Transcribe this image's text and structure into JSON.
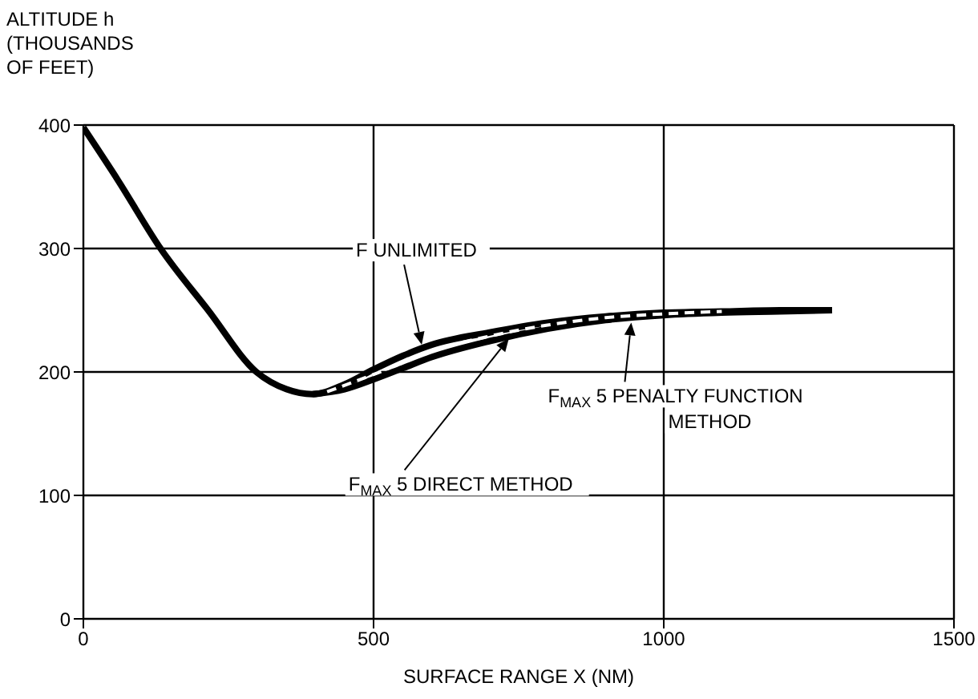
{
  "chart_data": {
    "type": "line",
    "ylabel": "ALTITUDE h\n(THOUSANDS\nOF FEET)",
    "xlabel": "SURFACE RANGE X (NM)",
    "xlim": [
      0,
      1500
    ],
    "xticks": [
      0,
      500,
      1000,
      1500
    ],
    "ylim": [
      0,
      400
    ],
    "yticks": [
      0,
      100,
      200,
      300,
      400
    ],
    "grid": true,
    "marker": "none",
    "series": [
      {
        "color": "#000000",
        "line_style": "solid",
        "x": [
          0,
          60,
          133,
          215,
          298,
          350,
          395,
          450,
          500,
          550,
          600,
          700,
          800,
          900,
          1000,
          1100,
          1200,
          1290
        ],
        "values": [
          398,
          355,
          300,
          250,
          200,
          186,
          182,
          190,
          202,
          213,
          222,
          232,
          240,
          245,
          248,
          249,
          250,
          250
        ]
      },
      {
        "color": "#000000",
        "line_style": "solid",
        "x": [
          395,
          450,
          500,
          550,
          600,
          700,
          800,
          900,
          1000,
          1100,
          1200,
          1290
        ],
        "values": [
          182,
          186,
          194,
          203,
          212,
          225,
          235,
          242,
          246,
          248,
          249,
          250
        ]
      },
      {
        "color": "#ffffff",
        "line_style": "dashed",
        "x": [
          420,
          500,
          600,
          700,
          800,
          900,
          1000,
          1100
        ],
        "values": [
          184,
          198,
          217,
          229,
          238,
          244,
          247,
          249
        ]
      }
    ],
    "annotations": [
      {
        "text": "F UNLIMITED",
        "x": 583,
        "y": 222
      },
      {
        "text": "F$_{MAX}$ 5 DIRECT METHOD",
        "x": 733,
        "y": 227
      },
      {
        "text": "F$_{MAX}$ 5 PENALTY FUNCTION\nMETHOD",
        "x": 944,
        "y": 240
      }
    ]
  }
}
